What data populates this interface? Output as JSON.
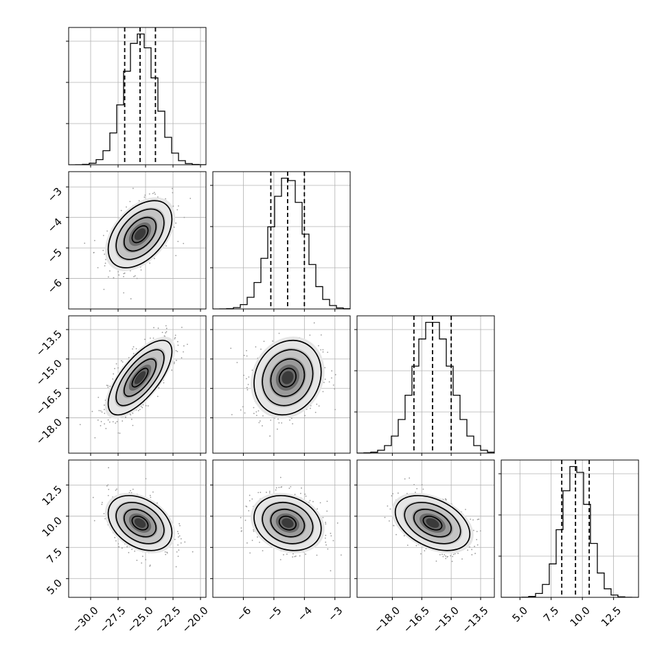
{
  "chart_data": {
    "type": "corner",
    "parameters": [
      {
        "mean": -25.5,
        "sd": 1.45,
        "range": [
          -32,
          -19.5
        ],
        "ticks": [
          -30.0,
          -27.5,
          -25.0,
          -22.5,
          -20.0
        ],
        "tick_labels": [
          "−30.0",
          "−27.5",
          "−25.0",
          "−22.5",
          "−20.0"
        ],
        "quantiles": [
          -26.9,
          -25.5,
          -24.1
        ]
      },
      {
        "mean": -4.55,
        "sd": 0.55,
        "range": [
          -7.0,
          -2.5
        ],
        "ticks": [
          -6,
          -5,
          -4,
          -3
        ],
        "tick_labels": [
          "−6",
          "−5",
          "−4",
          "−3"
        ],
        "quantiles": [
          -5.1,
          -4.55,
          -4.0
        ]
      },
      {
        "mean": -15.95,
        "sd": 0.95,
        "range": [
          -19.8,
          -12.8
        ],
        "ticks": [
          -18.0,
          -16.5,
          -15.0,
          -13.5
        ],
        "tick_labels": [
          "−18.0",
          "−16.5",
          "−15.0",
          "−13.5"
        ],
        "quantiles": [
          -16.9,
          -15.95,
          -15.0
        ]
      },
      {
        "mean": 9.45,
        "sd": 1.1,
        "range": [
          3.5,
          14.5
        ],
        "ticks": [
          5.0,
          7.5,
          10.0,
          12.5
        ],
        "tick_labels": [
          "5.0",
          "7.5",
          "10.0",
          "12.5"
        ],
        "quantiles": [
          8.35,
          9.45,
          10.55
        ]
      }
    ],
    "correlations": {
      "1-0": 0.45,
      "2-0": 0.7,
      "2-1": 0.15,
      "3-0": -0.35,
      "3-1": -0.2,
      "3-2": -0.4
    },
    "contour_levels_sigma": [
      0.5,
      1.0,
      1.5,
      2.0
    ],
    "histogram_bins": 20,
    "grid": true,
    "color": "#000000",
    "point_color": "#9a9a9a"
  }
}
